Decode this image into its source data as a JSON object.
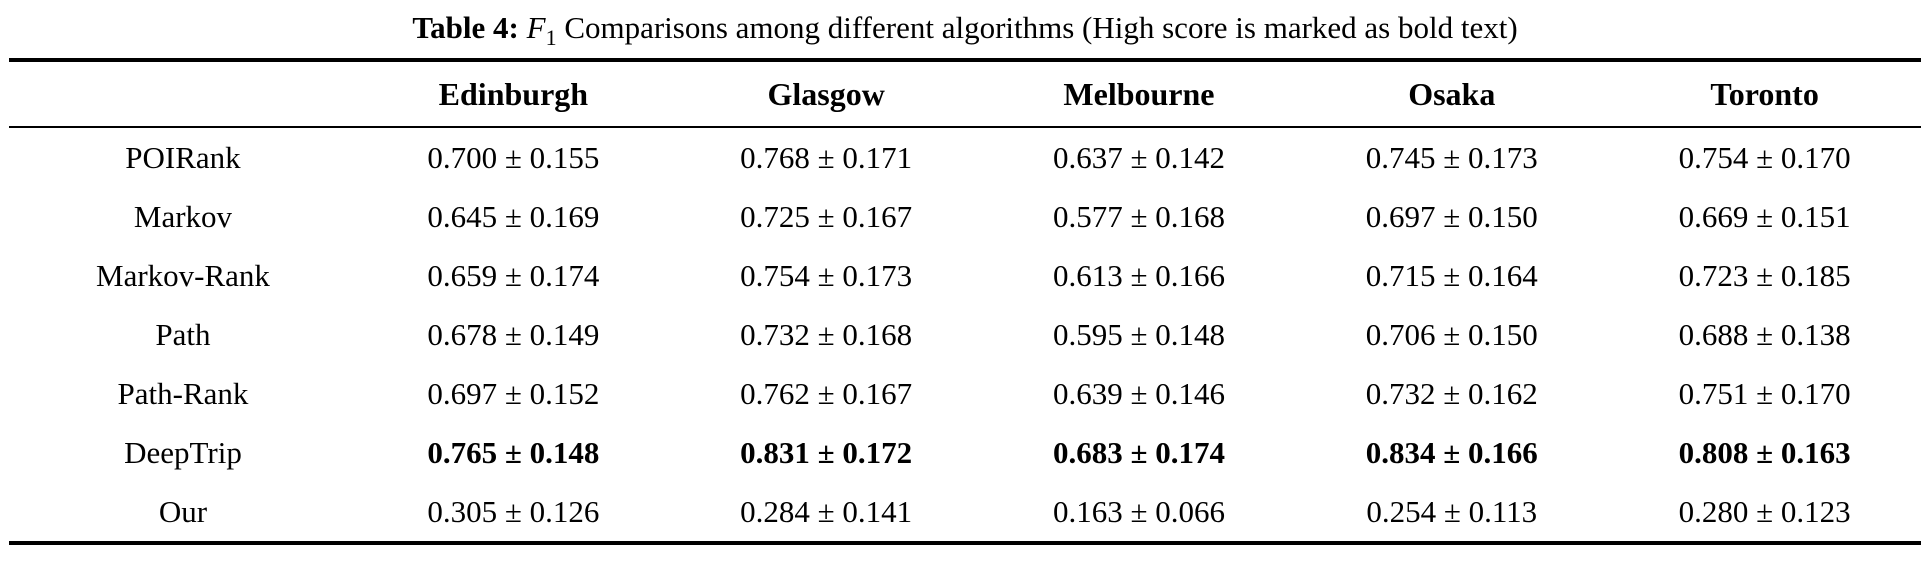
{
  "caption": {
    "prefix": "Table 4:",
    "metric": "F",
    "metric_sub": "1",
    "rest": "Comparisons among different algorithms (High score is marked as bold text)"
  },
  "table": {
    "corner": "",
    "columns": [
      "Edinburgh",
      "Glasgow",
      "Melbourne",
      "Osaka",
      "Toronto"
    ],
    "rows": [
      {
        "label": "POIRank",
        "values": [
          "0.700 ± 0.155",
          "0.768 ± 0.171",
          "0.637 ± 0.142",
          "0.745 ± 0.173",
          "0.754 ± 0.170"
        ],
        "bold": false
      },
      {
        "label": "Markov",
        "values": [
          "0.645 ± 0.169",
          "0.725 ± 0.167",
          "0.577 ± 0.168",
          "0.697 ± 0.150",
          "0.669 ± 0.151"
        ],
        "bold": false
      },
      {
        "label": "Markov-Rank",
        "values": [
          "0.659 ± 0.174",
          "0.754 ± 0.173",
          "0.613 ± 0.166",
          "0.715 ± 0.164",
          "0.723 ± 0.185"
        ],
        "bold": false
      },
      {
        "label": "Path",
        "values": [
          "0.678 ± 0.149",
          "0.732 ± 0.168",
          "0.595 ± 0.148",
          "0.706 ± 0.150",
          "0.688 ± 0.138"
        ],
        "bold": false
      },
      {
        "label": "Path-Rank",
        "values": [
          "0.697 ± 0.152",
          "0.762 ± 0.167",
          "0.639 ± 0.146",
          "0.732 ± 0.162",
          "0.751 ± 0.170"
        ],
        "bold": false
      },
      {
        "label": "DeepTrip",
        "values": [
          "0.765 ± 0.148",
          "0.831 ± 0.172",
          "0.683 ± 0.174",
          "0.834 ± 0.166",
          "0.808 ± 0.163"
        ],
        "bold": true
      },
      {
        "label": "Our",
        "values": [
          "0.305 ± 0.126",
          "0.284 ± 0.141",
          "0.163 ± 0.066",
          "0.254 ± 0.113",
          "0.280 ± 0.123"
        ],
        "bold": false
      }
    ]
  },
  "colors": {
    "text": "#000000",
    "background": "#ffffff",
    "rule": "#000000"
  }
}
